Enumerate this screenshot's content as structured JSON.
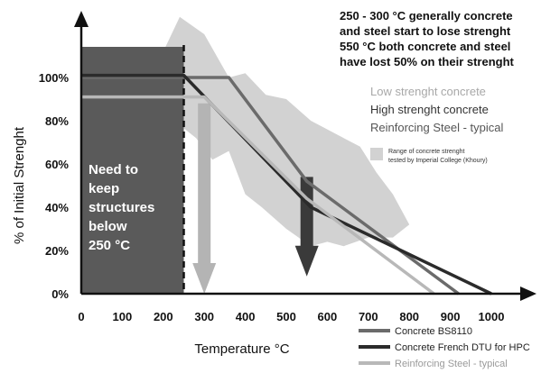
{
  "chart_data": {
    "type": "line",
    "ylabel": "% of Initial Strenght",
    "xlabel": "Temperature °C",
    "xlim": [
      0,
      1000
    ],
    "ylim": [
      0,
      100
    ],
    "x_ticks": [
      0,
      100,
      200,
      300,
      400,
      500,
      600,
      700,
      800,
      900,
      1000
    ],
    "y_ticks": [
      {
        "value": 0,
        "label": "0%"
      },
      {
        "value": 20,
        "label": "20%"
      },
      {
        "value": 40,
        "label": "40%"
      },
      {
        "value": 60,
        "label": "60%"
      },
      {
        "value": 80,
        "label": "80%"
      },
      {
        "value": 100,
        "label": "100%"
      }
    ],
    "threshold_x": 250,
    "band_range": [
      0,
      250
    ],
    "band_text": [
      "Need to",
      "keep",
      "structures",
      "below",
      "250 °C"
    ],
    "headline": [
      "250 - 300 °C generally concrete",
      "and steel start to lose strenght",
      "550 °C both concrete and steel",
      "have  lost 50% on their strenght"
    ],
    "legend_top": [
      {
        "label": "Low strenght concrete",
        "color": "#a8a8a8"
      },
      {
        "label": "High strenght concrete",
        "color": "#333333"
      },
      {
        "label": "Reinforcing Steel - typical",
        "color": "#555555"
      }
    ],
    "range_legend": {
      "lines": [
        "Range of concrete strenght",
        "tested by Imperial College (Khoury)"
      ],
      "color": "#d2d2d2"
    },
    "legend_bottom": [
      {
        "label": "Concrete BS8110",
        "color": "#6b6b6b"
      },
      {
        "label": "Concrete French DTU for HPC",
        "color": "#2b2b2b"
      },
      {
        "label": "Reinforcing Steel - typical",
        "color": "#b8b8b8"
      }
    ],
    "series": [
      {
        "name": "Concrete BS8110",
        "color": "#6b6b6b",
        "x": [
          0,
          360,
          550,
          920
        ],
        "y": [
          100,
          100,
          52,
          0
        ]
      },
      {
        "name": "Concrete French DTU for HPC",
        "color": "#2b2b2b",
        "x": [
          0,
          250,
          560,
          1000
        ],
        "y": [
          101,
          101,
          40,
          0
        ]
      },
      {
        "name": "Reinforcing Steel - typical",
        "color": "#b8b8b8",
        "x": [
          0,
          300,
          550,
          860
        ],
        "y": [
          91,
          91,
          44,
          0
        ]
      }
    ],
    "range_band": {
      "upper": [
        [
          10,
          94
        ],
        [
          100,
          94
        ],
        [
          200,
          112
        ],
        [
          240,
          128
        ],
        [
          300,
          120
        ],
        [
          360,
          100
        ],
        [
          400,
          102
        ],
        [
          450,
          92
        ],
        [
          500,
          90
        ],
        [
          560,
          80
        ],
        [
          600,
          76
        ],
        [
          680,
          68
        ],
        [
          720,
          56
        ],
        [
          760,
          46
        ],
        [
          800,
          32
        ],
        [
          760,
          26
        ]
      ],
      "lower": [
        [
          760,
          26
        ],
        [
          700,
          26
        ],
        [
          640,
          22
        ],
        [
          600,
          24
        ],
        [
          560,
          22
        ],
        [
          500,
          30
        ],
        [
          440,
          40
        ],
        [
          400,
          46
        ],
        [
          360,
          66
        ],
        [
          320,
          62
        ],
        [
          280,
          72
        ],
        [
          240,
          78
        ],
        [
          200,
          84
        ],
        [
          120,
          84
        ],
        [
          60,
          90
        ],
        [
          10,
          94
        ]
      ]
    },
    "arrows": [
      {
        "x": 300,
        "from": 88,
        "to": 0,
        "color": "#b4b4b4"
      },
      {
        "x": 550,
        "from": 54,
        "to": 8,
        "color": "#3a3a3a"
      }
    ]
  }
}
